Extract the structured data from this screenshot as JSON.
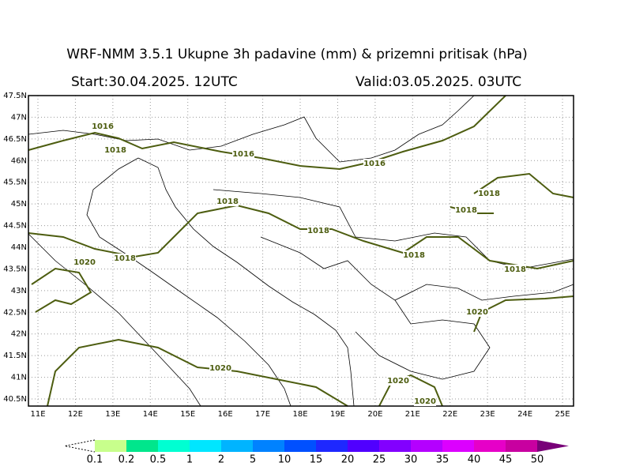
{
  "header": {
    "title": "WRF-NMM 3.5.1  Ukupne 3h padavine (mm) & prizemni pritisak (hPa)",
    "start": "Start:30.04.2025.  12UTC",
    "valid": "Valid:03.05.2025.  03UTC"
  },
  "map": {
    "lat_labels": [
      "47.5N",
      "47N",
      "46.5N",
      "46N",
      "45.5N",
      "45N",
      "44.5N",
      "44N",
      "43.5N",
      "43N",
      "42.5N",
      "42N",
      "41.5N",
      "41N",
      "40.5N"
    ],
    "lon_labels": [
      "11E",
      "12E",
      "13E",
      "14E",
      "15E",
      "16E",
      "17E",
      "18E",
      "19E",
      "20E",
      "21E",
      "22E",
      "23E",
      "24E",
      "25E"
    ],
    "isobar_labels": [
      "1016",
      "1018",
      "1016",
      "1016",
      "1018",
      "1018",
      "1018",
      "1018",
      "1020",
      "1018",
      "1018",
      "1018",
      "1020",
      "1020",
      "1020",
      "1020"
    ]
  },
  "legend": {
    "labels": [
      "0.1",
      "0.2",
      "0.5",
      "1",
      "2",
      "5",
      "10",
      "15",
      "20",
      "25",
      "30",
      "35",
      "40",
      "45",
      "50"
    ],
    "colors": [
      "#c8ff8c",
      "#00e68c",
      "#00ffd2",
      "#00e6ff",
      "#00b4ff",
      "#0082ff",
      "#0050ff",
      "#1e28ff",
      "#5000ff",
      "#8200ff",
      "#b400ff",
      "#dc00ff",
      "#e600c8",
      "#c800a0",
      "#780078"
    ]
  }
}
